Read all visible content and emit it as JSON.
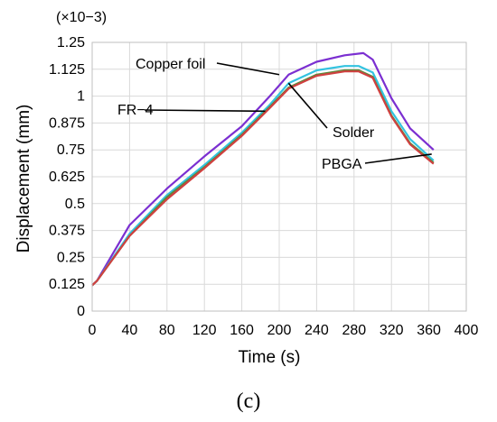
{
  "chart_data": {
    "type": "line",
    "xlabel": "Time (s)",
    "ylabel": "Displacement (mm)",
    "y_multiplier": "(×10−3)",
    "panel_label": "(c)",
    "xlim": [
      0,
      400
    ],
    "ylim": [
      0,
      1.25
    ],
    "x_ticks": [
      "0",
      "40",
      "80",
      "120",
      "160",
      "200",
      "240",
      "280",
      "320",
      "360",
      "400"
    ],
    "y_ticks": [
      "0",
      "0.125",
      "0.25",
      "0.375",
      "0.5",
      "0.625",
      "0.75",
      "0.875",
      "1",
      "1.125",
      "1.25"
    ],
    "grid": true,
    "series": [
      {
        "color": "#7b2fd1",
        "x": [
          0,
          5,
          40,
          80,
          120,
          160,
          190,
          210,
          240,
          270,
          290,
          300,
          320,
          340,
          365
        ],
        "y": [
          0.12,
          0.14,
          0.4,
          0.57,
          0.72,
          0.86,
          1.0,
          1.1,
          1.16,
          1.19,
          1.2,
          1.17,
          0.99,
          0.85,
          0.75
        ]
      },
      {
        "color": "#33c3e0",
        "x": [
          0,
          5,
          40,
          80,
          120,
          160,
          190,
          210,
          240,
          270,
          285,
          300,
          320,
          340,
          365
        ],
        "y": [
          0.12,
          0.14,
          0.36,
          0.54,
          0.68,
          0.83,
          0.96,
          1.06,
          1.12,
          1.14,
          1.14,
          1.11,
          0.93,
          0.8,
          0.7
        ]
      },
      {
        "color": "#5a8a3a",
        "x": [
          0,
          5,
          40,
          80,
          120,
          160,
          190,
          210,
          240,
          270,
          285,
          300,
          320,
          340,
          365
        ],
        "y": [
          0.12,
          0.14,
          0.35,
          0.53,
          0.67,
          0.82,
          0.95,
          1.04,
          1.1,
          1.12,
          1.12,
          1.09,
          0.91,
          0.78,
          0.69
        ]
      },
      {
        "color": "#d04040",
        "x": [
          0,
          5,
          40,
          80,
          120,
          160,
          190,
          210,
          240,
          270,
          285,
          300,
          320,
          340,
          365
        ],
        "y": [
          0.12,
          0.14,
          0.35,
          0.52,
          0.665,
          0.815,
          0.945,
          1.035,
          1.095,
          1.115,
          1.115,
          1.085,
          0.905,
          0.775,
          0.685
        ]
      }
    ],
    "annotations": [
      {
        "text": "Copper foil",
        "point": [
          200,
          1.1
        ]
      },
      {
        "text": "FR−4",
        "point": [
          185,
          0.93
        ]
      },
      {
        "text": "Solder",
        "point": [
          210,
          1.06
        ]
      },
      {
        "text": "PBGA",
        "point": [
          363,
          0.73
        ]
      }
    ]
  }
}
